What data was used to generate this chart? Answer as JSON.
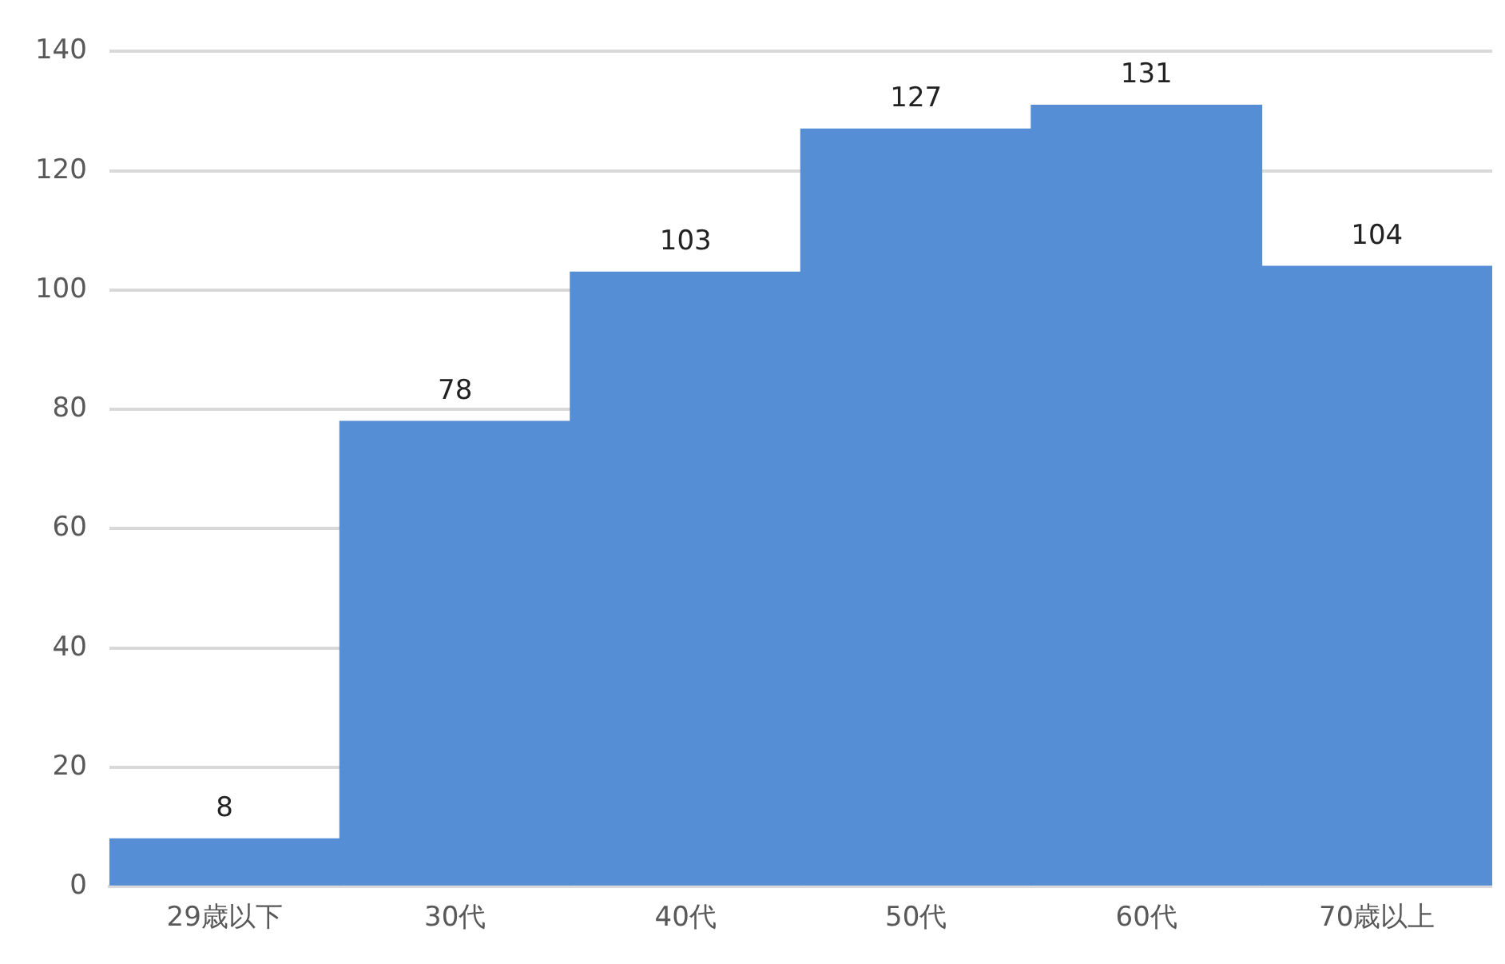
{
  "chart_data": {
    "type": "bar",
    "categories": [
      "29歳以下",
      "30代",
      "40代",
      "50代",
      "60代",
      "70歳以上"
    ],
    "values": [
      8,
      78,
      103,
      127,
      131,
      104
    ],
    "color": "#558ed5",
    "ylim": [
      0,
      140
    ],
    "yticks": [
      0,
      20,
      40,
      60,
      80,
      100,
      120,
      140
    ],
    "grid": "y",
    "data_labels": true
  }
}
